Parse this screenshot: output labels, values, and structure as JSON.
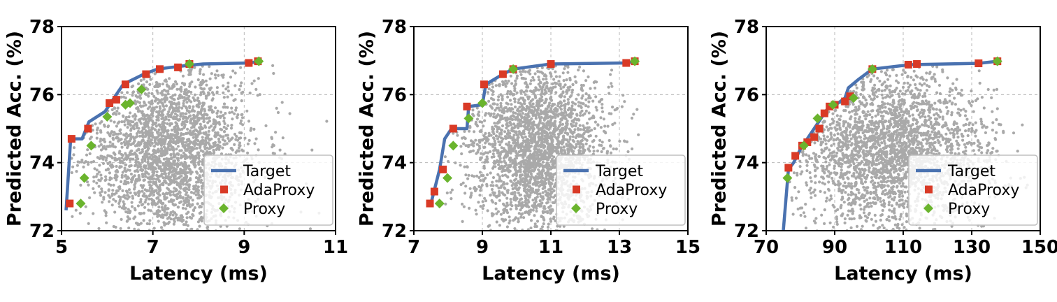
{
  "chart_data": [
    {
      "type": "scatter",
      "xlabel": "Latency (ms)",
      "ylabel": "Predicted Acc. (%)",
      "xlim": [
        5,
        11
      ],
      "ylim": [
        72,
        78
      ],
      "xticks": [
        5,
        7,
        9,
        11
      ],
      "yticks": [
        72,
        74,
        76,
        78
      ],
      "grid": true,
      "legend_position": "lower-right",
      "background_cloud": {
        "center": [
          7.4,
          74.3
        ],
        "spread": [
          0.9,
          1.3
        ],
        "color": "#a9a9a9"
      },
      "series": [
        {
          "name": "Target",
          "kind": "line",
          "color": "#4a72b0",
          "x": [
            5.1,
            5.2,
            5.45,
            5.6,
            5.95,
            6.1,
            6.2,
            6.35,
            6.8,
            7.1,
            7.7,
            8.1,
            9.1,
            9.35
          ],
          "y": [
            72.6,
            74.7,
            74.7,
            75.2,
            75.5,
            75.8,
            76.0,
            76.3,
            76.6,
            76.75,
            76.85,
            76.9,
            76.93,
            76.98
          ]
        },
        {
          "name": "AdaProxy",
          "kind": "square",
          "color": "#d93a26",
          "x": [
            5.18,
            5.22,
            5.58,
            6.05,
            6.2,
            6.4,
            6.85,
            7.15,
            7.55,
            7.8,
            9.1,
            9.3
          ],
          "y": [
            72.8,
            74.7,
            75.0,
            75.75,
            75.85,
            76.3,
            76.6,
            76.75,
            76.8,
            76.9,
            76.93,
            76.98
          ]
        },
        {
          "name": "Proxy",
          "kind": "diamond",
          "color": "#6ab42d",
          "x": [
            5.42,
            5.5,
            5.65,
            6.0,
            6.4,
            6.5,
            6.75,
            7.8,
            9.32
          ],
          "y": [
            72.8,
            73.55,
            74.5,
            75.35,
            75.7,
            75.75,
            76.15,
            76.9,
            76.98
          ]
        }
      ]
    },
    {
      "type": "scatter",
      "xlabel": "Latency (ms)",
      "ylabel": "Predicted Acc. (%)",
      "xlim": [
        7,
        15
      ],
      "ylim": [
        72,
        78
      ],
      "xticks": [
        7,
        9,
        11,
        13,
        15
      ],
      "yticks": [
        72,
        74,
        76,
        78
      ],
      "grid": true,
      "legend_position": "lower-right",
      "background_cloud": {
        "center": [
          10.6,
          74.4
        ],
        "spread": [
          1.0,
          1.25
        ],
        "color": "#a9a9a9"
      },
      "series": [
        {
          "name": "Target",
          "kind": "line",
          "color": "#4a72b0",
          "x": [
            7.5,
            7.6,
            7.75,
            7.9,
            8.1,
            8.55,
            8.6,
            9.0,
            9.1,
            9.6,
            9.9,
            11.0,
            13.2,
            13.45
          ],
          "y": [
            72.8,
            73.2,
            73.8,
            74.7,
            75.0,
            75.0,
            75.65,
            75.7,
            76.3,
            76.6,
            76.75,
            76.9,
            76.93,
            76.98
          ]
        },
        {
          "name": "AdaProxy",
          "kind": "square",
          "color": "#d93a26",
          "x": [
            7.47,
            7.6,
            7.85,
            8.15,
            8.55,
            9.05,
            9.6,
            9.9,
            11.0,
            13.2,
            13.45
          ],
          "y": [
            72.8,
            73.15,
            73.8,
            75.0,
            75.65,
            76.3,
            76.6,
            76.75,
            76.9,
            76.93,
            76.98
          ]
        },
        {
          "name": "Proxy",
          "kind": "diamond",
          "color": "#6ab42d",
          "x": [
            7.75,
            7.98,
            8.15,
            8.6,
            9.0,
            9.9,
            13.45
          ],
          "y": [
            72.8,
            73.55,
            74.5,
            75.3,
            75.75,
            76.75,
            76.98
          ]
        }
      ]
    },
    {
      "type": "scatter",
      "xlabel": "Latency (ms)",
      "ylabel": "Predicted Acc. (%)",
      "xlim": [
        70,
        150
      ],
      "ylim": [
        72,
        78
      ],
      "xticks": [
        70,
        90,
        110,
        130,
        150
      ],
      "yticks": [
        72,
        74,
        76,
        78
      ],
      "grid": true,
      "legend_position": "lower-right",
      "background_cloud": {
        "center": [
          106,
          74.4
        ],
        "spread": [
          14,
          1.25
        ],
        "color": "#a9a9a9"
      },
      "series": [
        {
          "name": "Target",
          "kind": "line",
          "color": "#4a72b0",
          "x": [
            75,
            76.5,
            78,
            80,
            83,
            86,
            88,
            91,
            93,
            94,
            97,
            101,
            112,
            132,
            137.5
          ],
          "y": [
            72.0,
            73.8,
            74.0,
            74.4,
            74.85,
            75.3,
            75.6,
            75.75,
            75.9,
            76.2,
            76.45,
            76.75,
            76.88,
            76.92,
            76.98
          ]
        },
        {
          "name": "AdaProxy",
          "kind": "square",
          "color": "#d93a26",
          "x": [
            76.5,
            78.5,
            80.5,
            82,
            84,
            85.5,
            87,
            88.5,
            90,
            93,
            94.5,
            101,
            111.5,
            114,
            132,
            137.5
          ],
          "y": [
            73.85,
            74.2,
            74.5,
            74.6,
            74.75,
            75.0,
            75.45,
            75.65,
            75.7,
            75.8,
            75.95,
            76.75,
            76.88,
            76.9,
            76.92,
            76.98
          ]
        },
        {
          "name": "Proxy",
          "kind": "diamond",
          "color": "#6ab42d",
          "x": [
            76.2,
            81,
            85,
            89.5,
            95.5,
            101,
            137.5
          ],
          "y": [
            73.55,
            74.5,
            75.3,
            75.7,
            75.9,
            76.75,
            76.98
          ]
        }
      ]
    }
  ]
}
